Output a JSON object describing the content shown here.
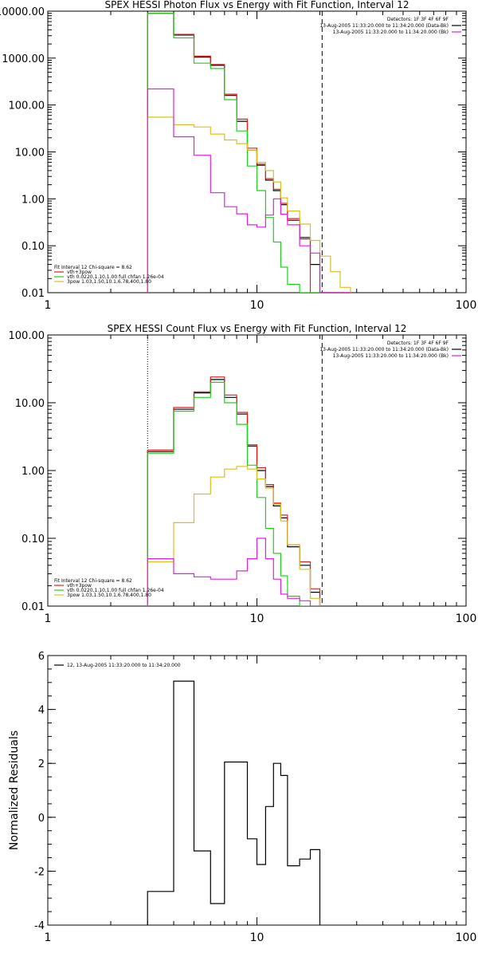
{
  "chart_data": [
    {
      "type": "line",
      "title": "SPEX HESSI Photon Flux vs Energy with Fit Function, Interval 12",
      "xscale": "log",
      "yscale": "log",
      "xlim": [
        1,
        100
      ],
      "ylim": [
        0.01,
        10000
      ],
      "xticks": [
        1,
        10,
        100
      ],
      "xtick_labels": [
        "1",
        "10",
        "100"
      ],
      "yticks": [
        0.01,
        0.1,
        1,
        10,
        100,
        1000,
        10000
      ],
      "ytick_labels": [
        "0.01",
        "0.10",
        "1.00",
        "10.00",
        "100.00",
        "1000.00",
        "10000.00"
      ],
      "bin_edges": [
        3,
        4,
        5,
        6,
        7,
        8,
        9,
        10,
        11,
        12,
        13,
        14,
        16,
        18,
        20,
        22.5,
        25,
        28
      ],
      "vlines": [
        {
          "x": 3,
          "style": "dotted"
        },
        {
          "x": 20.5,
          "style": "dashed"
        }
      ],
      "header": [
        "Detectors: 1F 3F 4F 6F 9F",
        "13-Aug-2005 11:33:20.000 to 11:34:20.000 (Data-Bk)",
        "13-Aug-2005 11:33:20.000 to 11:34:20.000 (Bk)"
      ],
      "header_key": [
        {
          "name": "13-Aug-2005 11:33:20.000 to 11:34:20.000 (Data-Bk)",
          "color": "#000000"
        },
        {
          "name": "13-Aug-2005 11:33:20.000 to 11:34:20.000 (Bk)",
          "color": "#e020e0"
        }
      ],
      "legend_title": "Fit Interval 12     Chi-square = 8.62",
      "legend_placement": "bottom-left",
      "legend": [
        {
          "name": "vth+3pow",
          "color": "#e02020"
        },
        {
          "name": "vth 0.0220,1.10,1.00  full chfan 1.26e-04",
          "color": "#20d020"
        },
        {
          "name": "3pow 1.03,1.50,10.1,6.78,400,1.80",
          "color": "#d8c020"
        }
      ],
      "series": [
        {
          "name": "Data-Bk",
          "color": "#000000",
          "values": [
            9000,
            3100,
            1050,
            700,
            160,
            45,
            11,
            5.2,
            2.5,
            1.5,
            0.75,
            0.35,
            0.15,
            0.04,
            0.01,
            0.0,
            0.0
          ]
        },
        {
          "name": "vth+3pow",
          "color": "#e02020",
          "values": [
            9000,
            3200,
            1100,
            730,
            170,
            50,
            12,
            5.5,
            2.7,
            1.6,
            0.8,
            0.38,
            0.14,
            0.0,
            0.0,
            0.0,
            0.0
          ]
        },
        {
          "name": "vth",
          "color": "#20d020",
          "values": [
            9000,
            2700,
            780,
            600,
            130,
            28,
            5,
            1.5,
            0.4,
            0.12,
            0.035,
            0.015,
            0.0,
            0.0,
            0.0,
            0.0,
            0.0
          ]
        },
        {
          "name": "3pow",
          "color": "#d8c020",
          "values": [
            55,
            38,
            34,
            24,
            18,
            15,
            11,
            6,
            4,
            2.3,
            1.05,
            0.55,
            0.29,
            0.13,
            0.06,
            0.028,
            0.013
          ]
        },
        {
          "name": "Bk",
          "color": "#e020e0",
          "values": [
            220,
            21,
            8.5,
            1.35,
            0.68,
            0.48,
            0.28,
            0.25,
            0.45,
            1.0,
            0.47,
            0.28,
            0.1,
            0.07,
            0.0,
            0.0,
            0.0
          ]
        }
      ]
    },
    {
      "type": "line",
      "title": "SPEX HESSI Count Flux vs Energy with Fit Function, Interval 12",
      "xscale": "log",
      "yscale": "log",
      "xlim": [
        1,
        100
      ],
      "ylim": [
        0.01,
        100
      ],
      "xticks": [
        1,
        10,
        100
      ],
      "xtick_labels": [
        "1",
        "10",
        "100"
      ],
      "yticks": [
        0.01,
        0.1,
        1,
        10,
        100
      ],
      "ytick_labels": [
        "0.01",
        "0.10",
        "1.00",
        "10.00",
        "100.00"
      ],
      "bin_edges": [
        3,
        4,
        5,
        6,
        7,
        8,
        9,
        10,
        11,
        12,
        13,
        14,
        16,
        18,
        20
      ],
      "vlines": [
        {
          "x": 3,
          "style": "dotted"
        },
        {
          "x": 20.5,
          "style": "dashed"
        }
      ],
      "header": [
        "Detectors: 1F 3F 4F 6F 9F",
        "13-Aug-2005 11:33:20.000 to 11:34:20.000 (Data-Bk)",
        "13-Aug-2005 11:33:20.000 to 11:34:20.000 (Bk)"
      ],
      "header_key": [
        {
          "name": "13-Aug-2005 11:33:20.000 to 11:34:20.000 (Data-Bk)",
          "color": "#000000"
        },
        {
          "name": "13-Aug-2005 11:33:20.000 to 11:34:20.000 (Bk)",
          "color": "#e020e0"
        }
      ],
      "legend_title": "Fit Interval 12     Chi-square = 8.62",
      "legend_placement": "bottom-left",
      "legend": [
        {
          "name": "vth+3pow",
          "color": "#e02020"
        },
        {
          "name": "vth 0.0220,1.10,1.00  full chfan 1.26e-04",
          "color": "#20d020"
        },
        {
          "name": "3pow 1.03,1.50,10.1,6.78,400,1.80",
          "color": "#d8c020"
        }
      ],
      "series": [
        {
          "name": "Data-Bk",
          "color": "#000000",
          "values": [
            1.9,
            8.0,
            14,
            22,
            12,
            6.8,
            2.3,
            1.0,
            0.58,
            0.3,
            0.2,
            0.075,
            0.04,
            0.016
          ]
        },
        {
          "name": "vth+3pow",
          "color": "#e02020",
          "values": [
            2.0,
            8.5,
            14.5,
            24,
            13,
            7.2,
            2.4,
            1.1,
            0.62,
            0.33,
            0.22,
            0.08,
            0.045,
            0.018
          ]
        },
        {
          "name": "vth",
          "color": "#20d020",
          "values": [
            1.8,
            7.5,
            12,
            20,
            10,
            4.8,
            1.2,
            0.4,
            0.14,
            0.06,
            0.028,
            0.014,
            0.0,
            0.0
          ]
        },
        {
          "name": "3pow",
          "color": "#d8c020",
          "values": [
            0.045,
            0.17,
            0.45,
            0.8,
            1.05,
            1.15,
            1.05,
            0.75,
            0.55,
            0.32,
            0.18,
            0.08,
            0.035,
            0.013
          ]
        },
        {
          "name": "Bk",
          "color": "#e020e0",
          "values": [
            0.05,
            0.03,
            0.027,
            0.025,
            0.025,
            0.033,
            0.05,
            0.1,
            0.05,
            0.025,
            0.015,
            0.013,
            0.012,
            0.0
          ]
        }
      ]
    },
    {
      "type": "line",
      "xscale": "log",
      "xlim": [
        1,
        100
      ],
      "ylim": [
        -4,
        6
      ],
      "xticks": [
        1,
        10,
        100
      ],
      "xtick_labels": [
        "1",
        "10",
        "100"
      ],
      "yticks": [
        -4,
        -2,
        0,
        2,
        4,
        6
      ],
      "ytick_labels": [
        "-4",
        "-2",
        "0",
        "2",
        "4",
        "6"
      ],
      "ylabel": "Normalized Residuals",
      "legend_placement": "top-left",
      "legend": [
        {
          "name": "12, 13-Aug-2005 11:33:20.000 to 11:34:20.000",
          "color": "#000000"
        }
      ],
      "bin_edges": [
        3,
        4,
        5,
        6,
        7,
        8,
        9,
        10,
        11,
        12,
        13,
        14,
        16,
        18,
        20
      ],
      "series": [
        {
          "name": "12, 13-Aug-2005 11:33:20.000 to 11:34:20.000",
          "color": "#000000",
          "values": [
            -2.75,
            5.05,
            -1.25,
            -3.2,
            2.05,
            2.05,
            -0.8,
            -1.75,
            0.4,
            2.0,
            1.55,
            -1.8,
            -1.55,
            -1.2
          ]
        }
      ]
    }
  ]
}
